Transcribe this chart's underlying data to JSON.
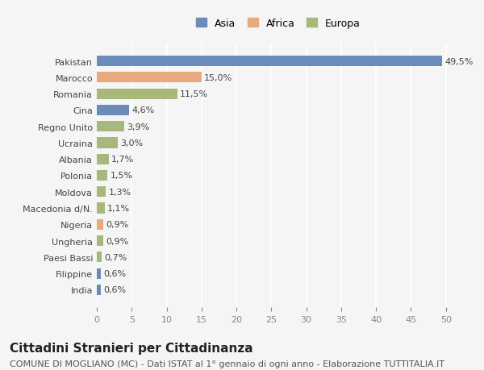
{
  "countries": [
    "India",
    "Filippine",
    "Paesi Bassi",
    "Ungheria",
    "Nigeria",
    "Macedonia d/N.",
    "Moldova",
    "Polonia",
    "Albania",
    "Ucraina",
    "Regno Unito",
    "Cina",
    "Romania",
    "Marocco",
    "Pakistan"
  ],
  "values": [
    0.6,
    0.6,
    0.7,
    0.9,
    0.9,
    1.1,
    1.3,
    1.5,
    1.7,
    3.0,
    3.9,
    4.6,
    11.5,
    15.0,
    49.5
  ],
  "labels": [
    "0,6%",
    "0,6%",
    "0,7%",
    "0,9%",
    "0,9%",
    "1,1%",
    "1,3%",
    "1,5%",
    "1,7%",
    "3,0%",
    "3,9%",
    "4,6%",
    "11,5%",
    "15,0%",
    "49,5%"
  ],
  "colors": [
    "#6b8cba",
    "#6b8cba",
    "#a8b87a",
    "#a8b87a",
    "#e8a97e",
    "#a8b87a",
    "#a8b87a",
    "#a8b87a",
    "#a8b87a",
    "#a8b87a",
    "#a8b87a",
    "#6b8cba",
    "#a8b87a",
    "#e8a97e",
    "#6b8cba"
  ],
  "legend_labels": [
    "Asia",
    "Africa",
    "Europa"
  ],
  "legend_colors": [
    "#6b8cba",
    "#e8a97e",
    "#a8b87a"
  ],
  "title": "Cittadini Stranieri per Cittadinanza",
  "subtitle": "COMUNE DI MOGLIANO (MC) - Dati ISTAT al 1° gennaio di ogni anno - Elaborazione TUTTITALIA.IT",
  "xlim": [
    0,
    52
  ],
  "xticks": [
    0,
    5,
    10,
    15,
    20,
    25,
    30,
    35,
    40,
    45,
    50
  ],
  "background_color": "#f5f5f5",
  "bar_height": 0.65,
  "title_fontsize": 11,
  "subtitle_fontsize": 8,
  "label_fontsize": 8,
  "tick_fontsize": 8,
  "legend_fontsize": 9
}
